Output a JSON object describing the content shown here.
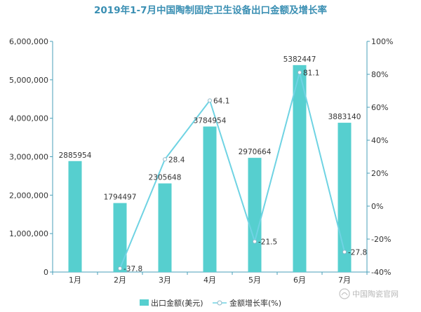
{
  "chart_data": {
    "type": "bar",
    "title": "2019年1-7月中国陶制固定卫生设备出口金额及增长率",
    "categories": [
      "1月",
      "2月",
      "3月",
      "4月",
      "5月",
      "6月",
      "7月"
    ],
    "series": [
      {
        "name": "出口金额(美元)",
        "type": "bar",
        "axis": "left",
        "values": [
          2885954,
          1794497,
          2305648,
          3784954,
          2970664,
          5382447,
          3883140
        ]
      },
      {
        "name": "金额增长率(%)",
        "type": "line",
        "axis": "right",
        "values": [
          null,
          -37.8,
          28.4,
          64.1,
          -21.5,
          81.1,
          -27.8
        ]
      }
    ],
    "y_left": {
      "range": [
        0,
        6000000
      ],
      "ticks": [
        0,
        1000000,
        2000000,
        3000000,
        4000000,
        5000000,
        6000000
      ],
      "tick_labels": [
        "0",
        "1,000,000",
        "2,000,000",
        "3,000,000",
        "4,000,000",
        "5,000,000",
        "6,000,000"
      ]
    },
    "y_right": {
      "range": [
        -40,
        100
      ],
      "ticks": [
        -40,
        -20,
        0,
        20,
        40,
        60,
        80,
        100
      ],
      "tick_labels": [
        "-40%",
        "-20%",
        "0%",
        "20%",
        "40%",
        "60%",
        "80%",
        "100%"
      ]
    },
    "bar_labels": [
      "2885954",
      "1794497",
      "2305648",
      "3784954",
      "2970664",
      "5382447",
      "3883140"
    ],
    "line_labels": [
      "",
      "-37.8",
      "28.4",
      "64.1",
      "-21.5",
      "81.1",
      "-27.8"
    ],
    "legend_position": "bottom"
  },
  "watermark": "中国陶瓷官网",
  "colors": {
    "bar": "#56cfcf",
    "line": "#6fd3e3",
    "axis": "#4a9fb8",
    "title": "#3a8fb3",
    "watermark": "#b8b8b8"
  }
}
